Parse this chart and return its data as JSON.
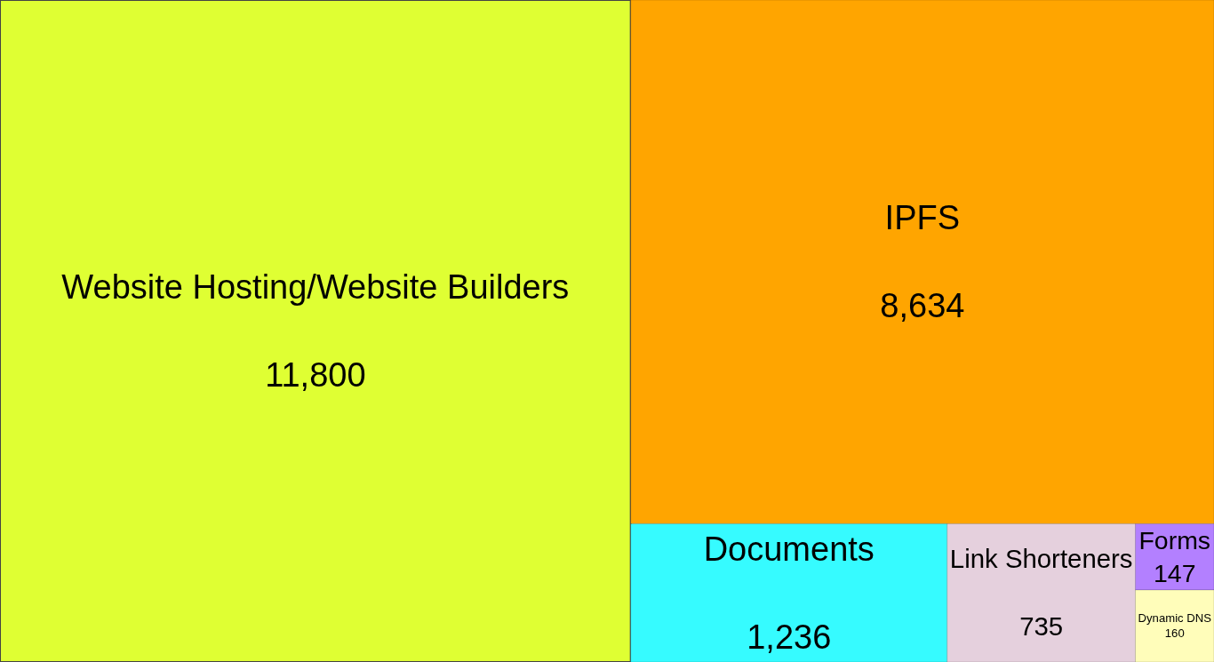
{
  "chart_data": {
    "type": "other",
    "categories": [
      "Website Hosting/Website Builders",
      "IPFS",
      "Documents",
      "Link Shorteners",
      "Forms",
      "Dynamic DNS"
    ],
    "values": [
      11800,
      8634,
      1236,
      735,
      147,
      160
    ],
    "value_labels": [
      "11,800",
      "8,634",
      "1,236",
      "735",
      "147",
      "160"
    ],
    "colors": [
      "#dfff33",
      "#ffa500",
      "#36fbff",
      "#e5d0dd",
      "#b380ff",
      "#fffdba"
    ]
  }
}
